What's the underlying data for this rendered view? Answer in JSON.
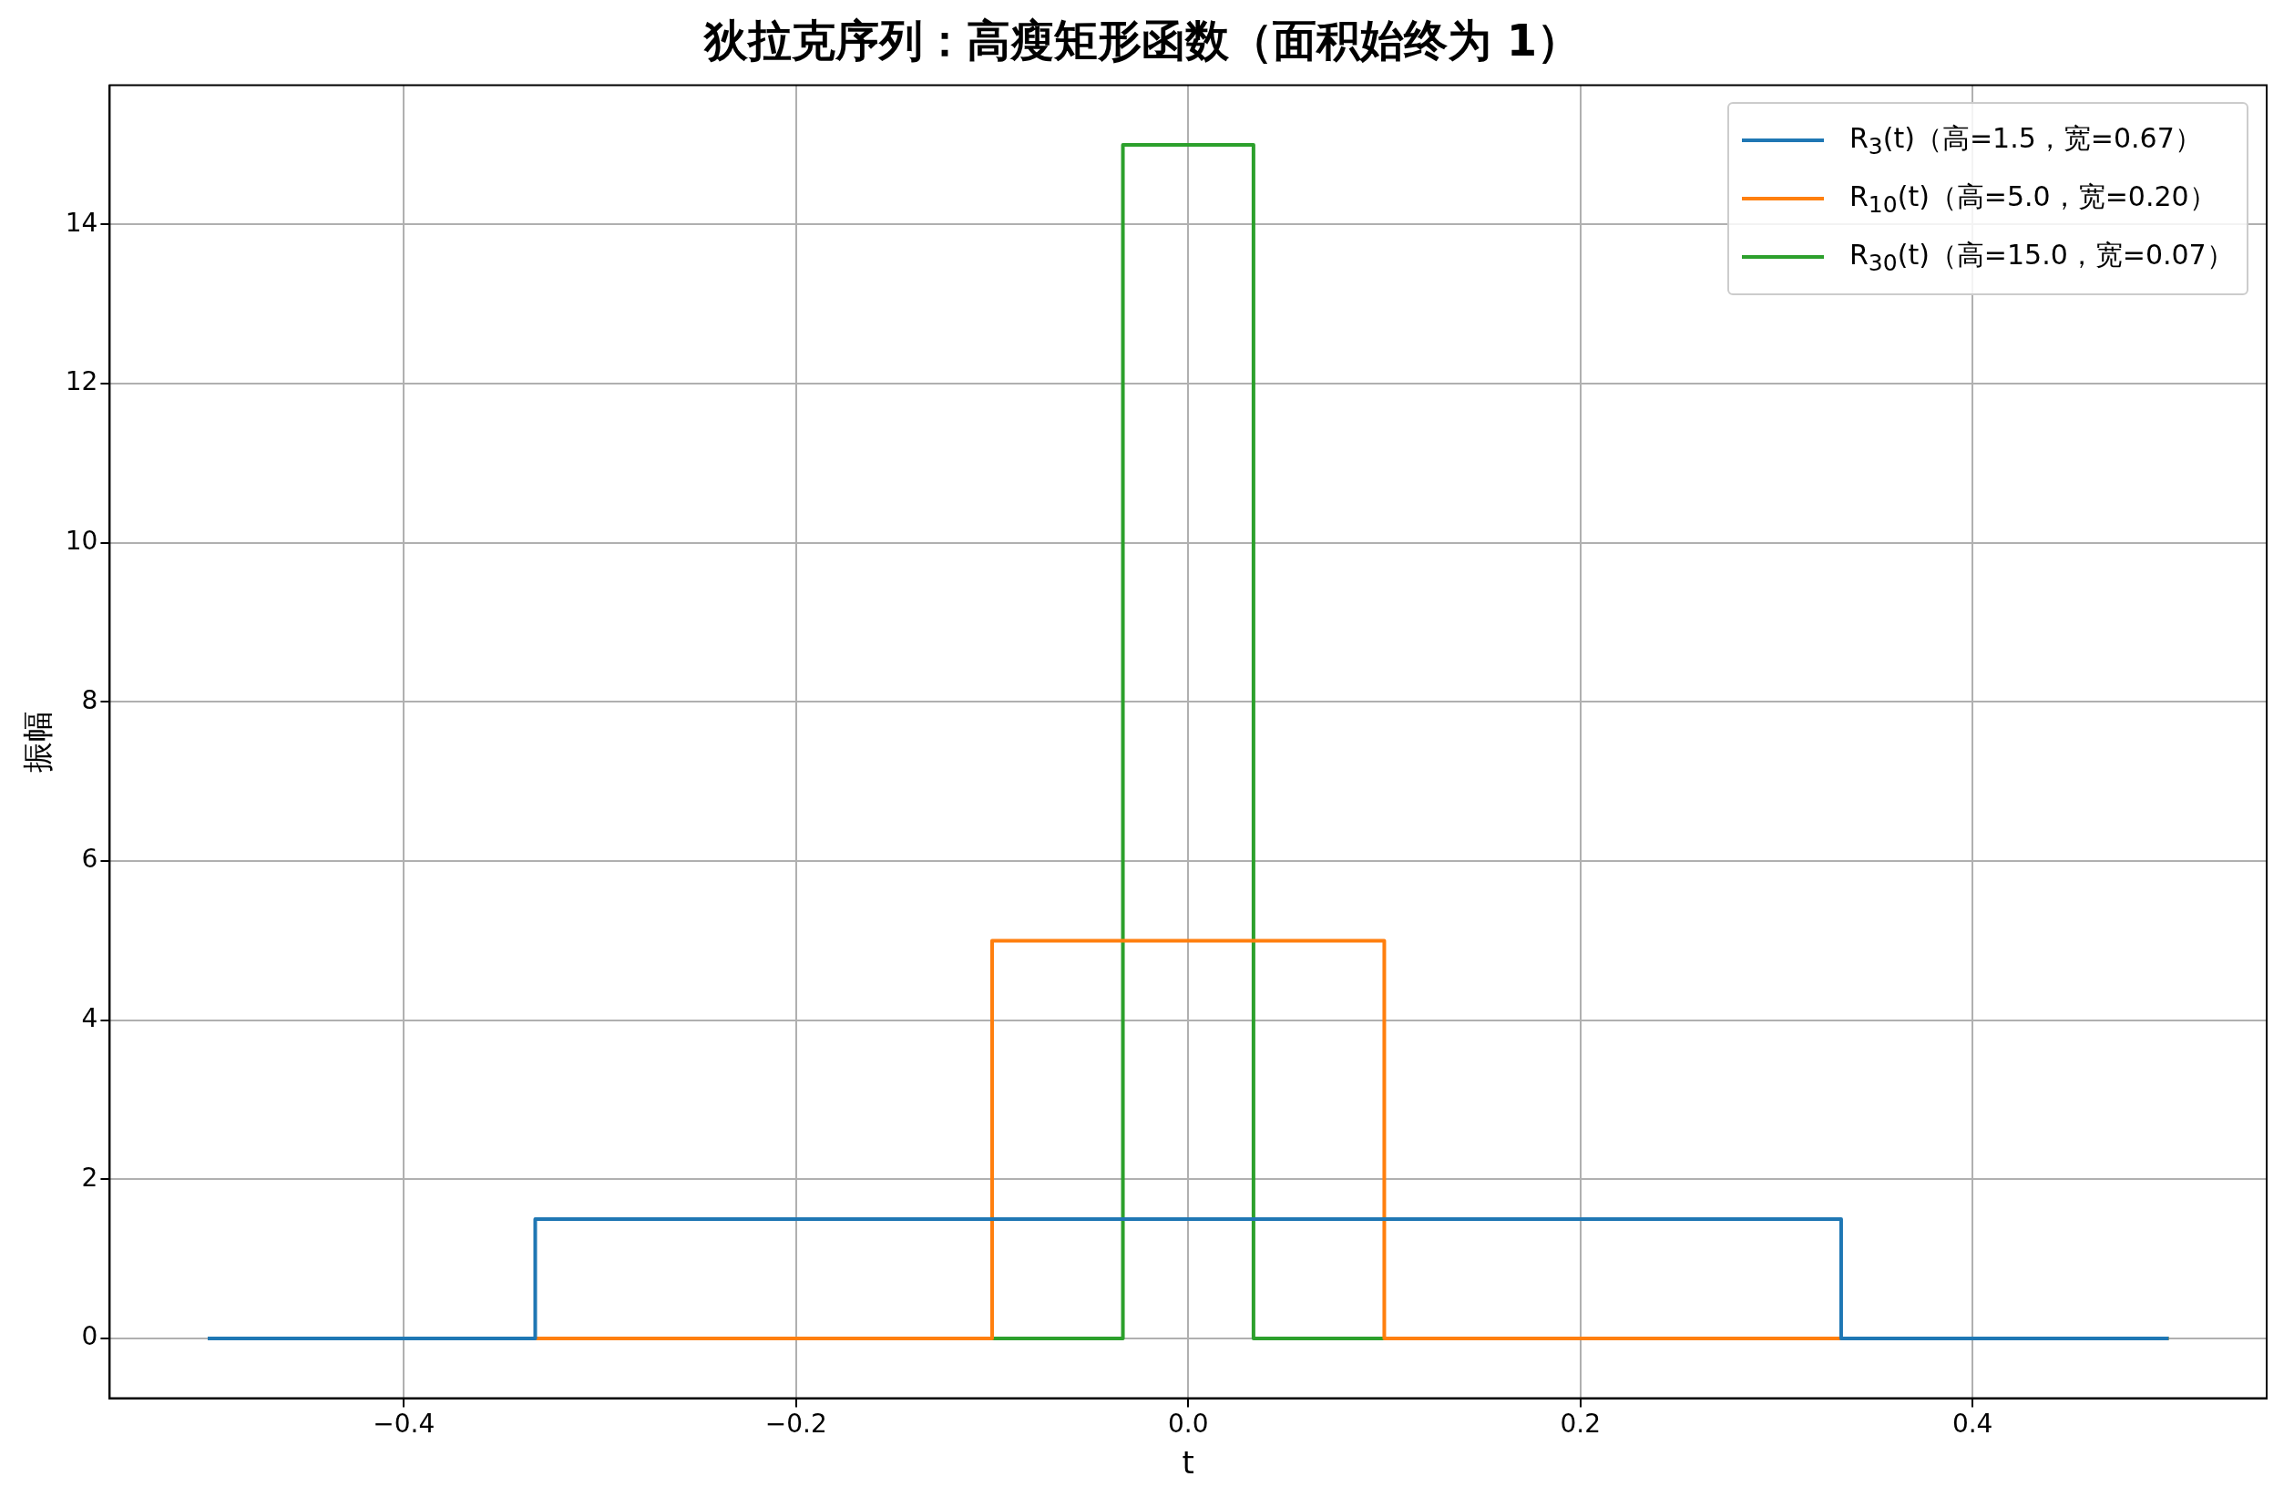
{
  "chart_data": {
    "type": "line",
    "title": "狄拉克序列：高瘦矩形函数（面积始终为 1）",
    "xlabel": "t",
    "ylabel": "振幅",
    "xlim": [
      -0.55,
      0.55
    ],
    "xticks": [
      {
        "value": -0.4,
        "label": "−0.4"
      },
      {
        "value": -0.2,
        "label": "−0.2"
      },
      {
        "value": 0,
        "label": "0.0"
      },
      {
        "value": 0.2,
        "label": "0.2"
      },
      {
        "value": 0.4,
        "label": "0.4"
      }
    ],
    "ylim": [
      -0.75,
      15.75
    ],
    "yticks": [
      0,
      2,
      4,
      6,
      8,
      10,
      12,
      14
    ],
    "grid": true,
    "legend": "top right",
    "marker": "none",
    "line_style": "solid",
    "series": [
      {
        "name": "R$_{3}$(t)（高=1.5，宽=0.67）",
        "color": "#1f77b4",
        "x": [
          -0.5,
          -0.333,
          -0.333,
          0.333,
          0.333,
          0.5
        ],
        "values": [
          0,
          0,
          1.5,
          1.5,
          0,
          0
        ]
      },
      {
        "name": "R$_{10}$(t)（高=5.0，宽=0.20）",
        "color": "#ff7f0e",
        "x": [
          -0.5,
          -0.1,
          -0.1,
          0.1,
          0.1,
          0.5
        ],
        "values": [
          0,
          0,
          5,
          5,
          0,
          0
        ]
      },
      {
        "name": "R$_{30}$(t)（高=15.0，宽=0.07）",
        "color": "#2ca02c",
        "x": [
          -0.5,
          -0.0333,
          -0.0333,
          0.0333,
          0.0333,
          0.5
        ],
        "values": [
          0,
          0,
          15,
          15,
          0,
          0
        ]
      }
    ]
  }
}
